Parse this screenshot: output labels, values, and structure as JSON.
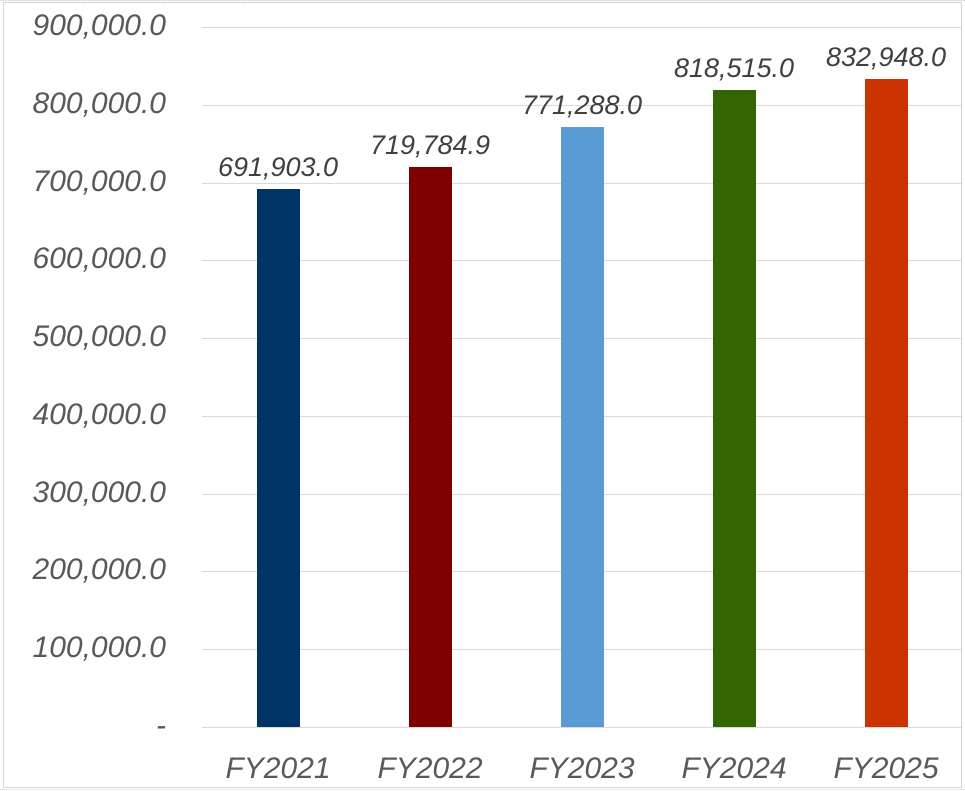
{
  "chart_data": {
    "type": "bar",
    "title": "",
    "xlabel": "",
    "ylabel": "",
    "categories": [
      "FY2021",
      "FY2022",
      "FY2023",
      "FY2024",
      "FY2025"
    ],
    "values": [
      691903.0,
      719784.9,
      771288.0,
      818515.0,
      832948.0
    ],
    "data_labels": [
      "691,903.0",
      "719,784.9",
      "771,288.0",
      "818,515.0",
      "832,948.0"
    ],
    "bar_colors": [
      "#003366",
      "#800000",
      "#5b9bd5",
      "#336600",
      "#cc3300"
    ],
    "ylim": [
      0,
      900000
    ],
    "y_ticks": [
      "-",
      "100,000.0",
      "200,000.0",
      "300,000.0",
      "400,000.0",
      "500,000.0",
      "600,000.0",
      "700,000.0",
      "800,000.0",
      "900,000.0"
    ],
    "grid": true,
    "legend": null
  }
}
